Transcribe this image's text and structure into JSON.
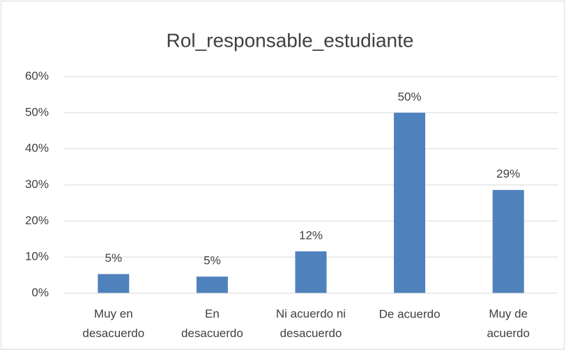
{
  "chart_data": {
    "type": "bar",
    "title": "Rol_responsable_estudiante",
    "categories": [
      "Muy en\ndesacuerdo",
      "En\ndesacuerdo",
      "Ni acuerdo ni\ndesacuerdo",
      "De acuerdo",
      "Muy de\nacuerdo"
    ],
    "values": [
      5.3,
      4.6,
      11.6,
      50,
      28.6
    ],
    "value_labels": [
      "5%",
      "5%",
      "12%",
      "50%",
      "29%"
    ],
    "color": "#4f81bd",
    "ylim": [
      0,
      60
    ],
    "yticks": [
      {
        "value": 0,
        "label": "0%"
      },
      {
        "value": 10,
        "label": "10%"
      },
      {
        "value": 20,
        "label": "20%"
      },
      {
        "value": 30,
        "label": "30%"
      },
      {
        "value": 40,
        "label": "40%"
      },
      {
        "value": 50,
        "label": "50%"
      },
      {
        "value": 60,
        "label": "60%"
      }
    ],
    "grid": true
  }
}
